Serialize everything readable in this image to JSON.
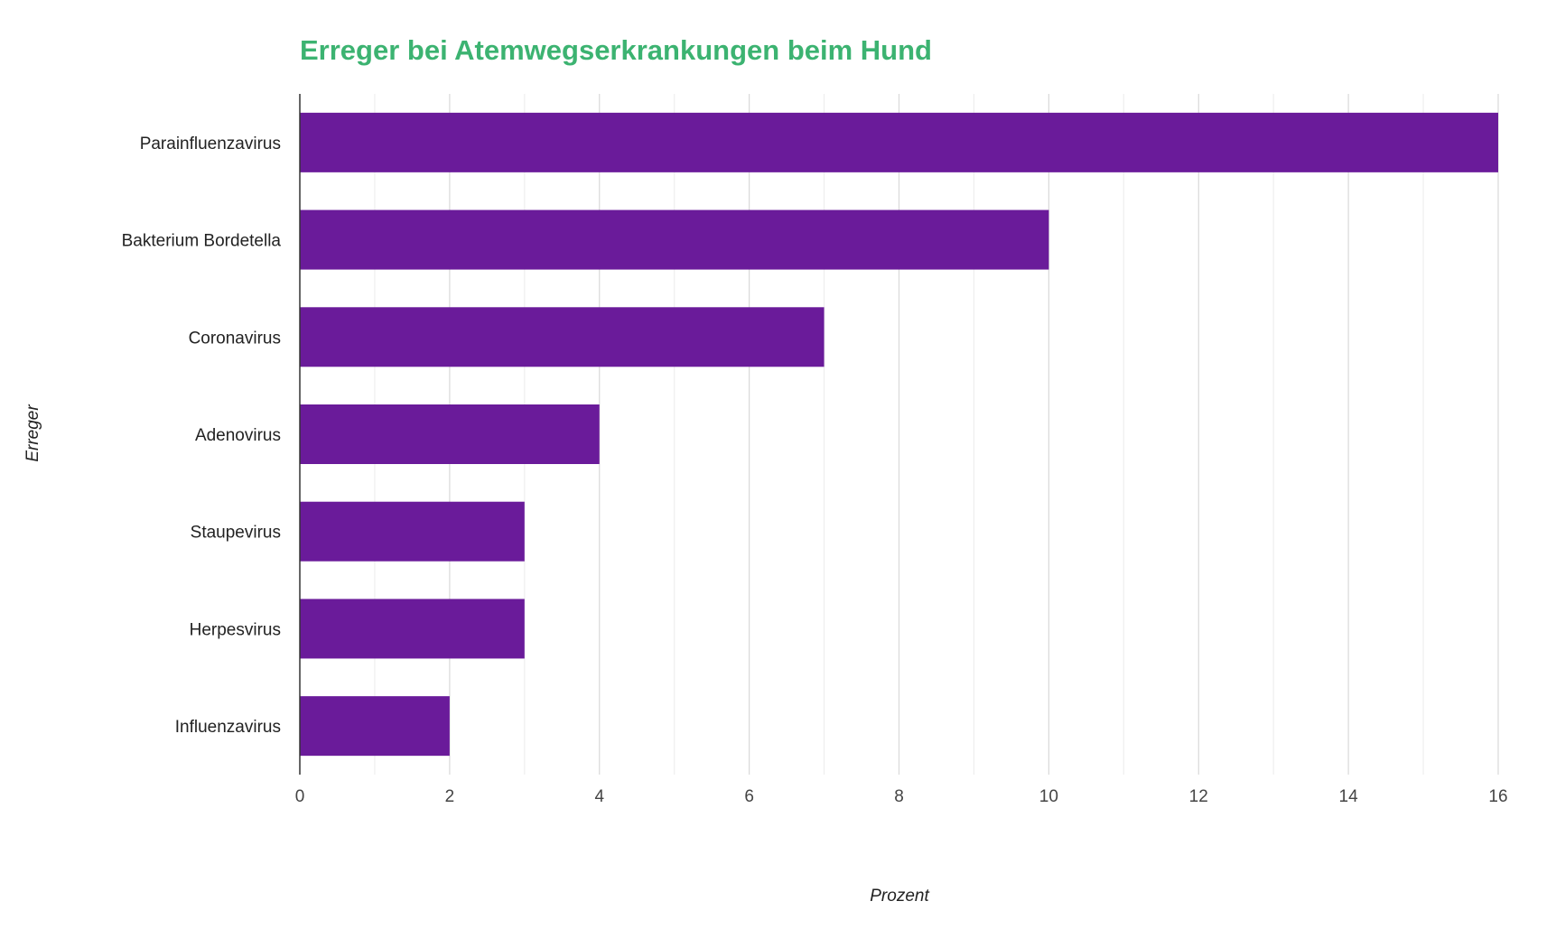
{
  "chart_data": {
    "type": "bar",
    "orientation": "horizontal",
    "title": "Erreger bei Atemwegserkrankungen beim Hund",
    "xlabel": "Prozent",
    "ylabel": "Erreger",
    "categories": [
      "Parainfluenzavirus",
      "Bakterium Bordetella",
      "Coronavirus",
      "Adenovirus",
      "Staupevirus",
      "Herpesvirus",
      "Influenzavirus"
    ],
    "values": [
      16,
      10,
      7,
      4,
      3,
      3,
      2
    ],
    "xlim": [
      0,
      16
    ],
    "xticks": [
      0,
      2,
      4,
      6,
      8,
      10,
      12,
      14,
      16
    ],
    "grid": true,
    "colors": {
      "bar": "#6a1b9a",
      "title": "#3cb371",
      "grid_major": "#d9d9d9",
      "grid_minor": "#eeeeee",
      "axis": "#333333"
    }
  }
}
